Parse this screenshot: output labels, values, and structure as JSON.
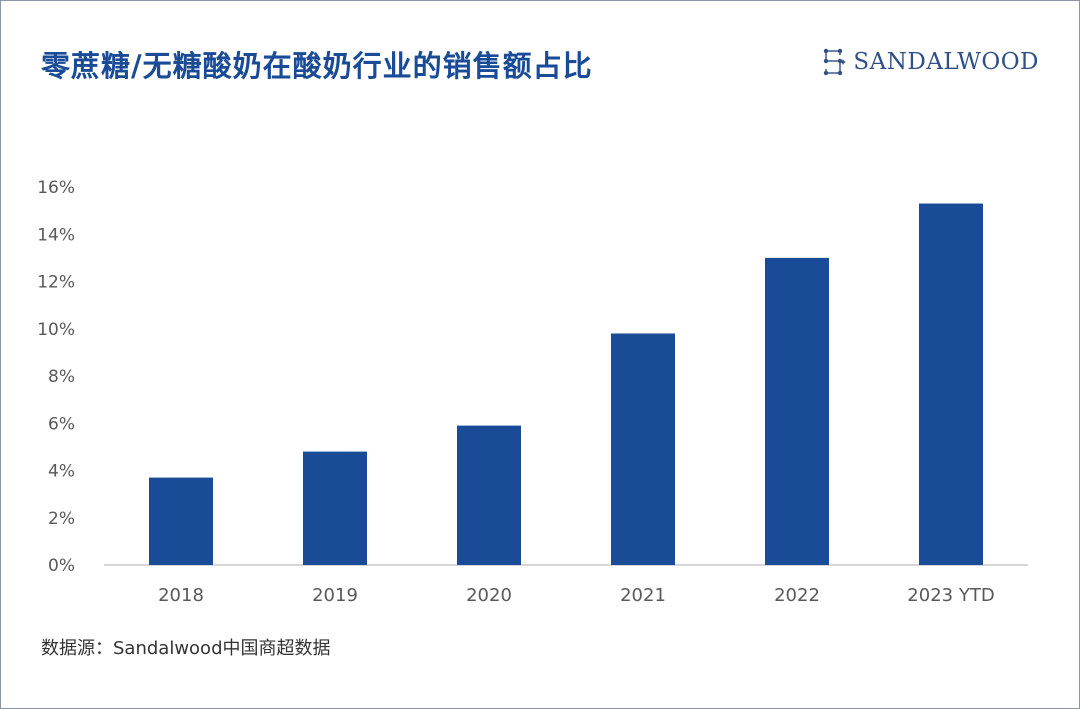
{
  "title": "零蔗糖/无糖酸奶在酸奶行业的销售额占比",
  "logo": {
    "text": "SANDALWOOD",
    "icon": "sandalwood-logo-mark"
  },
  "source": "数据源：Sandalwood中国商超数据",
  "colors": {
    "bar": "#1a4b97",
    "title": "#1a4b97",
    "axis_text": "#595959",
    "axis_line": "#bfbfbf"
  },
  "chart_data": {
    "type": "bar",
    "title": "零蔗糖/无糖酸奶在酸奶行业的销售额占比",
    "categories": [
      "2018",
      "2019",
      "2020",
      "2021",
      "2022",
      "2023 YTD"
    ],
    "values": [
      3.7,
      4.8,
      5.9,
      9.8,
      13.0,
      15.3
    ],
    "unit": "%",
    "ylim": [
      0,
      16
    ],
    "yticks": [
      "0%",
      "2%",
      "4%",
      "6%",
      "8%",
      "10%",
      "12%",
      "14%",
      "16%"
    ],
    "ytick_values": [
      0,
      2,
      4,
      6,
      8,
      10,
      12,
      14,
      16
    ],
    "grid": false,
    "legend": "none",
    "xlabel": "",
    "ylabel": ""
  }
}
